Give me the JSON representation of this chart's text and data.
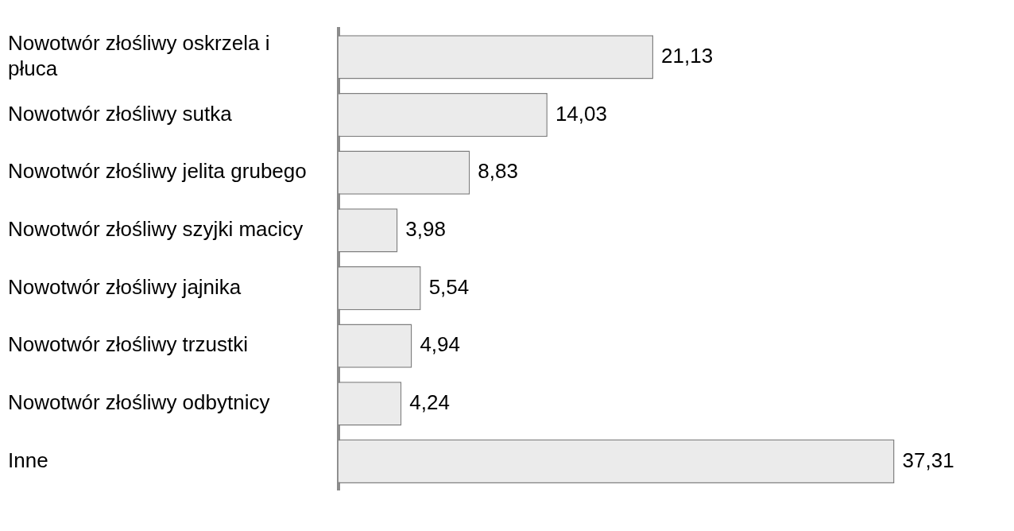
{
  "chart_data": {
    "type": "bar",
    "orientation": "horizontal",
    "categories": [
      "Nowotwór złośliwy oskrzela i płuca",
      "Nowotwór złośliwy sutka",
      "Nowotwór złośliwy jelita grubego",
      "Nowotwór złośliwy szyjki macicy",
      "Nowotwór złośliwy jajnika",
      "Nowotwór złośliwy trzustki",
      "Nowotwór złośliwy odbytnicy",
      "Inne"
    ],
    "values": [
      21.13,
      14.03,
      8.83,
      3.98,
      5.54,
      4.94,
      4.24,
      37.31
    ],
    "value_labels": [
      "21,13",
      "14,03",
      "8,83",
      "3,98",
      "5,54",
      "4,94",
      "4,24",
      "37,31"
    ],
    "color": "#ebebeb",
    "grid": false,
    "legend": false
  }
}
